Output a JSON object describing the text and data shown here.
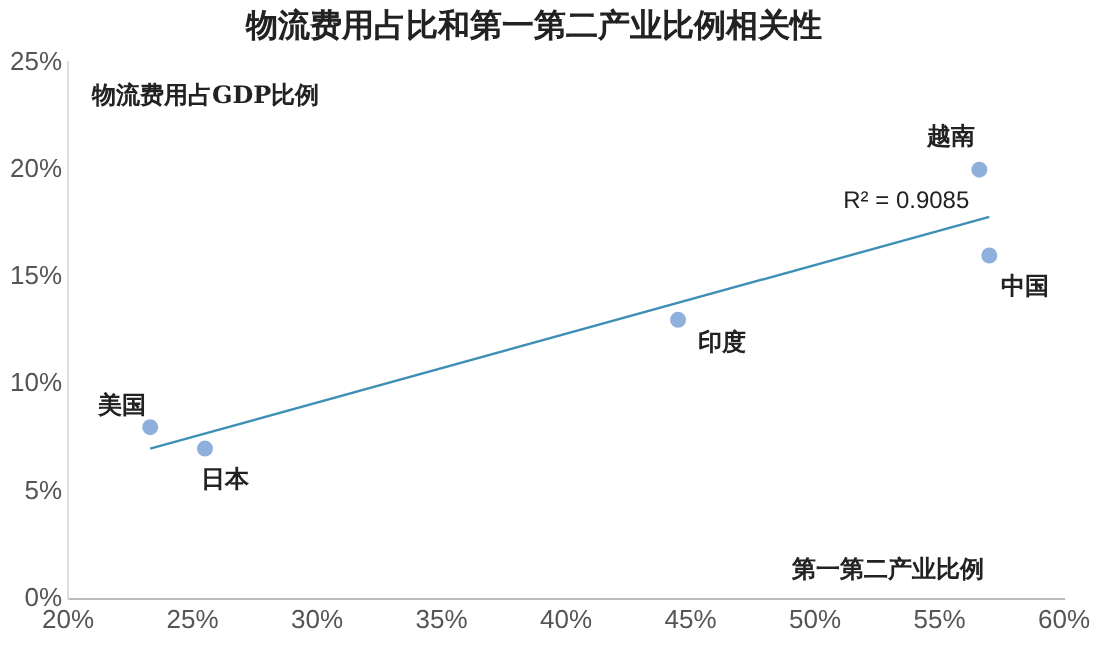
{
  "chart_data": {
    "type": "scatter",
    "title": "物流费用占比和第一第二产业比例相关性",
    "xlabel": "第一第二产业比例",
    "ylabel": "物流费用占GDP比例",
    "series": [
      {
        "color": "#8fb0dc",
        "marker": "circle",
        "x": [
          23.3,
          25.5,
          44.5,
          56.6,
          57
        ],
        "values": [
          8,
          7,
          13,
          20,
          16
        ]
      },
      {
        "type": "line",
        "color": "#3f8fb5",
        "marker": "none",
        "x": [
          23.3,
          57
        ],
        "values": [
          7,
          17.8
        ]
      }
    ],
    "annotations": [
      {
        "text": "美国",
        "x": 23.3,
        "y": 8
      },
      {
        "text": "日本",
        "x": 25.5,
        "y": 7
      },
      {
        "text": "印度",
        "x": 44.5,
        "y": 13
      },
      {
        "text": "越南",
        "x": 56.6,
        "y": 20
      },
      {
        "text": "中国",
        "x": 57,
        "y": 16
      },
      "R² = 0.9085"
    ],
    "xlim": [
      20,
      60
    ],
    "xticks": [
      {
        "value": 20,
        "label": "20%"
      },
      {
        "value": 25,
        "label": "25%"
      },
      {
        "value": 30,
        "label": "30%"
      },
      {
        "value": 35,
        "label": "35%"
      },
      {
        "value": 40,
        "label": "40%"
      },
      {
        "value": 45,
        "label": "45%"
      },
      {
        "value": 50,
        "label": "50%"
      },
      {
        "value": 55,
        "label": "55%"
      },
      {
        "value": 60,
        "label": "60%"
      }
    ],
    "ylim": [
      0,
      25
    ],
    "yticks": [
      {
        "value": 0,
        "label": "0%"
      },
      {
        "value": 5,
        "label": "5%"
      },
      {
        "value": 10,
        "label": "10%"
      },
      {
        "value": 15,
        "label": "15%"
      },
      {
        "value": 20,
        "label": "20%"
      },
      {
        "value": 25,
        "label": "25%"
      }
    ],
    "grid": false,
    "legend": false
  }
}
